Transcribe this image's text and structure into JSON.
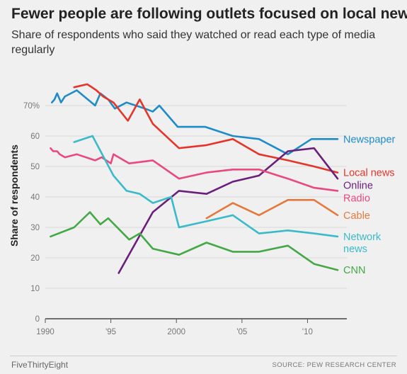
{
  "header": {
    "title": "Fewer people are following outlets focused on local news",
    "subtitle": "Share of respondents who said they watched or read each type of media regularly"
  },
  "footer": {
    "brand": "FiveThirtyEight",
    "source": "SOURCE: PEW RESEARCH CENTER"
  },
  "chart_data": {
    "type": "line",
    "ylabel": "Share of respondents",
    "ylim": [
      0,
      80
    ],
    "xlim": [
      1990,
      2013
    ],
    "grid": true,
    "legend": "inline-right",
    "y_ticks": [
      {
        "value": 0,
        "label": "0"
      },
      {
        "value": 10,
        "label": "10"
      },
      {
        "value": 20,
        "label": "20"
      },
      {
        "value": 30,
        "label": "30"
      },
      {
        "value": 40,
        "label": "40"
      },
      {
        "value": 50,
        "label": "50"
      },
      {
        "value": 60,
        "label": "60"
      },
      {
        "value": 70,
        "label": "70%"
      }
    ],
    "x_ticks": [
      {
        "value": 1990,
        "label": "1990"
      },
      {
        "value": 1995,
        "label": "'95"
      },
      {
        "value": 2000,
        "label": "2000"
      },
      {
        "value": 2005,
        "label": "'05"
      },
      {
        "value": 2010,
        "label": "'10"
      }
    ],
    "series": [
      {
        "name": "Newspaper",
        "label_lines": [
          "Newspaper"
        ],
        "color": "#1f8cc8",
        "x": [
          1990.5,
          1990.7,
          1990.9,
          1991.2,
          1991.5,
          1992.4,
          1993.8,
          1994.2,
          1994.8,
          1995.3,
          1996.2,
          1996.9,
          1997.6,
          1998.2,
          1998.7,
          2000.1,
          2002.2,
          2004.3,
          2006.3,
          2008.5,
          2010.3,
          2012.3
        ],
        "y": [
          71,
          72,
          74,
          71,
          73,
          75,
          70,
          74,
          72,
          69,
          71,
          70,
          69,
          68,
          70,
          63,
          63,
          60,
          59,
          54,
          59,
          59
        ]
      },
      {
        "name": "Local news",
        "label_lines": [
          "Local news"
        ],
        "color": "#e5352b",
        "x": [
          1992.2,
          1993.2,
          1993.9,
          1994.4,
          1995.2,
          1996.3,
          1997.2,
          1997.7,
          1998.2,
          2000.2,
          2002.3,
          2004.3,
          2006.3,
          2008.5,
          2010.5,
          2012.3
        ],
        "y": [
          76,
          77,
          75,
          73,
          71,
          65,
          72,
          68,
          64,
          56,
          57,
          59,
          54,
          52,
          50,
          48
        ]
      },
      {
        "name": "Online",
        "label_lines": [
          "Online"
        ],
        "color": "#6a1f7b",
        "x": [
          1995.6,
          1998.2,
          2000.2,
          2002.3,
          2004.3,
          2006.3,
          2008.5,
          2010.5,
          2012.3
        ],
        "y": [
          15,
          35,
          42,
          41,
          45,
          47,
          55,
          56,
          46
        ]
      },
      {
        "name": "Radio",
        "label_lines": [
          "Radio"
        ],
        "color": "#e9497f",
        "x": [
          1990.4,
          1990.6,
          1990.9,
          1991.1,
          1991.5,
          1992.4,
          1993.8,
          1994.3,
          1995.0,
          1995.2,
          1996.4,
          1998.2,
          2000.2,
          2002.3,
          2004.3,
          2006.3,
          2008.5,
          2010.5,
          2012.3
        ],
        "y": [
          56,
          55,
          55,
          54,
          53,
          54,
          52,
          53,
          51,
          54,
          51,
          52,
          46,
          48,
          49,
          49,
          46,
          43,
          42
        ]
      },
      {
        "name": "Cable",
        "label_lines": [
          "Cable"
        ],
        "color": "#e5793d",
        "x": [
          2002.3,
          2004.3,
          2006.3,
          2008.5,
          2010.5,
          2012.3
        ],
        "y": [
          33,
          38,
          34,
          39,
          39,
          34
        ]
      },
      {
        "name": "Network news",
        "label_lines": [
          "Network",
          "news"
        ],
        "color": "#3bbac9",
        "x": [
          1992.2,
          1993.6,
          1995.2,
          1996.2,
          1997.2,
          1998.2,
          1999.6,
          2000.2,
          2002.3,
          2004.3,
          2006.3,
          2008.5,
          2010.5,
          2012.3
        ],
        "y": [
          58,
          60,
          47,
          42,
          41,
          38,
          40,
          30,
          32,
          34,
          28,
          29,
          28,
          27
        ]
      },
      {
        "name": "CNN",
        "label_lines": [
          "CNN"
        ],
        "color": "#43a845",
        "x": [
          1990.4,
          1992.2,
          1993.4,
          1994.2,
          1994.8,
          1996.4,
          1997.2,
          1998.2,
          2000.2,
          2002.3,
          2004.3,
          2006.3,
          2008.5,
          2010.5,
          2012.3
        ],
        "y": [
          27,
          30,
          35,
          31,
          33,
          26,
          28,
          23,
          21,
          25,
          22,
          22,
          24,
          18,
          16
        ]
      }
    ]
  }
}
